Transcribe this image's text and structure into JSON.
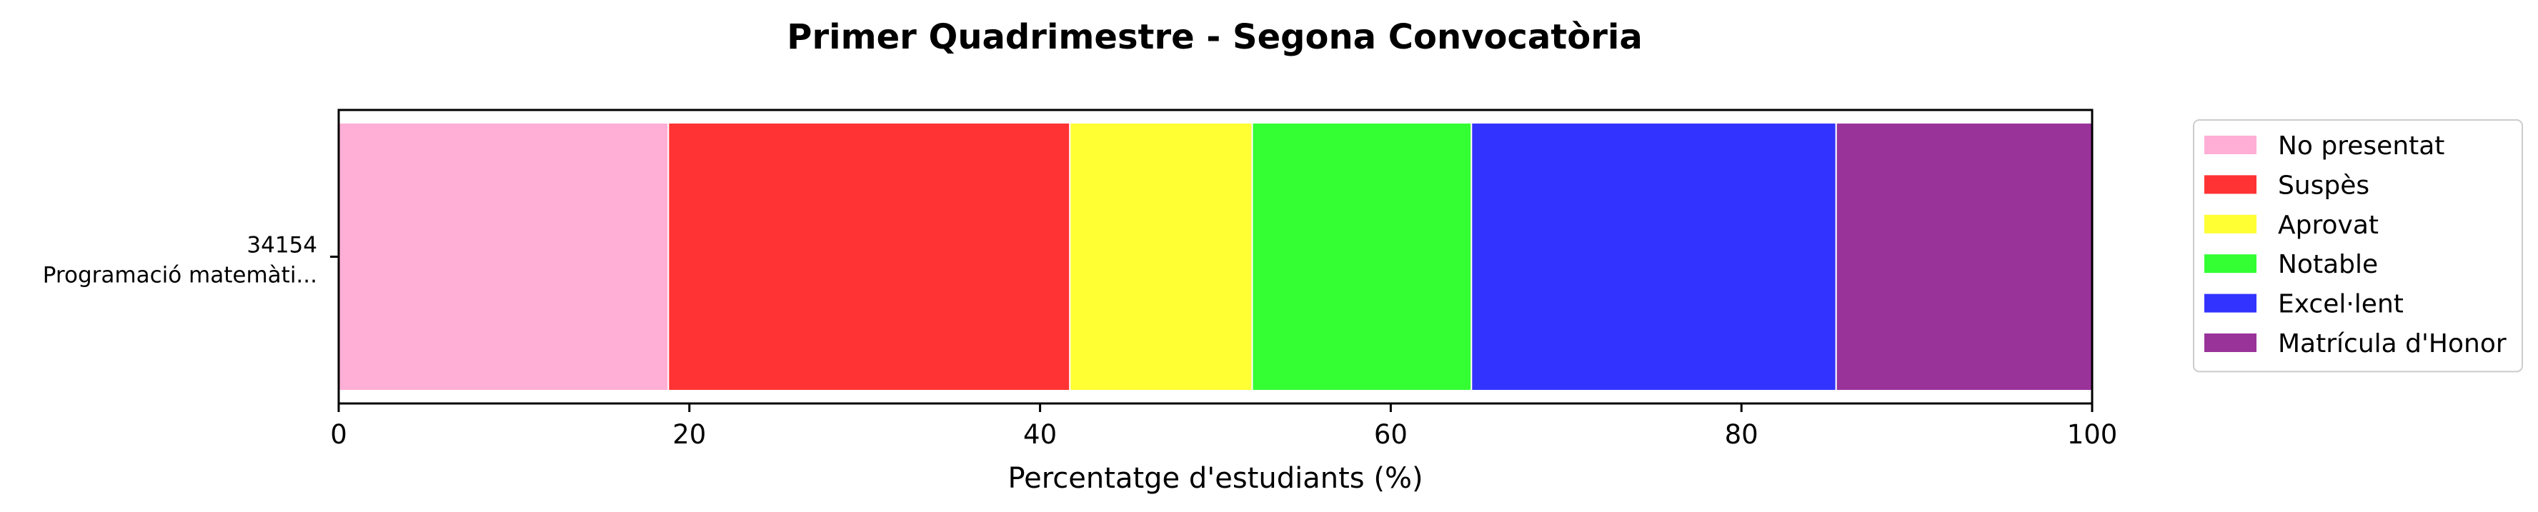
{
  "chart_data": {
    "type": "bar",
    "orientation": "horizontal",
    "stacked": true,
    "title": "Primer Quadrimestre - Segona Convocatòria",
    "xlabel": "Percentatge d'estudiants (%)",
    "ylabel": "",
    "xlim": [
      0,
      100
    ],
    "x_ticks": [
      "0",
      "20",
      "40",
      "60",
      "80",
      "100"
    ],
    "categories": [
      {
        "code": "34154",
        "name": "Programació matemàti..."
      }
    ],
    "series": [
      {
        "name": "No presentat",
        "color": "#ffaed6",
        "values": [
          18.8
        ]
      },
      {
        "name": "Suspès",
        "color": "#ff3333",
        "values": [
          22.9
        ]
      },
      {
        "name": "Aprovat",
        "color": "#ffff33",
        "values": [
          10.4
        ]
      },
      {
        "name": "Notable",
        "color": "#33ff33",
        "values": [
          12.5
        ]
      },
      {
        "name": "Excel·lent",
        "color": "#3333ff",
        "values": [
          20.8
        ]
      },
      {
        "name": "Matrícula d'Honor",
        "color": "#993399",
        "values": [
          14.6
        ]
      }
    ],
    "grid": false,
    "legend_position": "outside-right"
  }
}
